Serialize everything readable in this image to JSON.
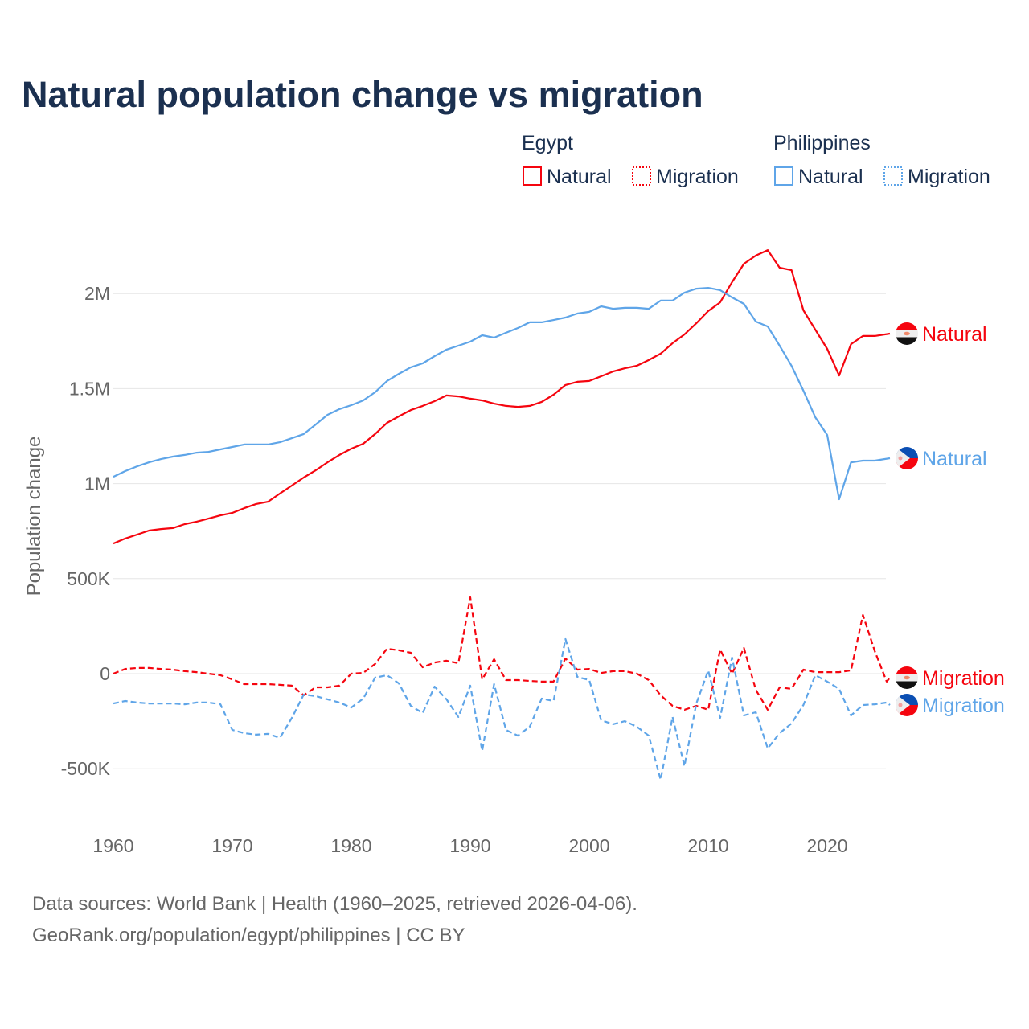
{
  "chart_data": {
    "type": "line",
    "title": "Natural population change vs migration",
    "ylabel": "Population change",
    "xlabel": "",
    "units": "thousands",
    "ylim": [
      -650000,
      2350000
    ],
    "xlim": [
      1960,
      2025
    ],
    "y_ticks": [
      {
        "value": -500000,
        "label": "-500K"
      },
      {
        "value": 0,
        "label": "0"
      },
      {
        "value": 500000,
        "label": "500K"
      },
      {
        "value": 1000000,
        "label": "1M"
      },
      {
        "value": 1500000,
        "label": "1.5M"
      },
      {
        "value": 2000000,
        "label": "2M"
      }
    ],
    "x_ticks": [
      {
        "value": 1960,
        "label": "1960"
      },
      {
        "value": 1970,
        "label": "1970"
      },
      {
        "value": 1980,
        "label": "1980"
      },
      {
        "value": 1990,
        "label": "1990"
      },
      {
        "value": 2000,
        "label": "2000"
      },
      {
        "value": 2010,
        "label": "2010"
      },
      {
        "value": 2020,
        "label": "2020"
      }
    ],
    "grid": true,
    "legend": {
      "placement": "top-right",
      "groups": [
        {
          "country": "Egypt",
          "items": [
            "Natural",
            "Migration"
          ]
        },
        {
          "country": "Philippines",
          "items": [
            "Natural",
            "Migration"
          ]
        }
      ]
    },
    "series": [
      {
        "name": "Egypt Natural",
        "country": "Egypt",
        "kind": "Natural",
        "label": "Natural",
        "color": "#f5050f",
        "dashed": false,
        "start_year": 1960,
        "values": [
          685,
          711,
          732,
          753,
          761,
          766,
          787,
          800,
          816,
          833,
          846,
          871,
          893,
          905,
          948,
          990,
          1032,
          1070,
          1112,
          1151,
          1184,
          1210,
          1261,
          1320,
          1354,
          1387,
          1409,
          1434,
          1464,
          1459,
          1447,
          1438,
          1421,
          1409,
          1404,
          1409,
          1430,
          1468,
          1519,
          1536,
          1540,
          1565,
          1590,
          1607,
          1620,
          1650,
          1684,
          1739,
          1785,
          1844,
          1908,
          1954,
          2060,
          2157,
          2200,
          2229,
          2136,
          2123,
          1912,
          1810,
          1709,
          1569,
          1734,
          1777,
          1777
        ]
      },
      {
        "name": "Philippines Natural",
        "country": "Philippines",
        "kind": "Natural",
        "label": "Natural",
        "color": "#5fa5e8",
        "dashed": false,
        "start_year": 1960,
        "values": [
          1036,
          1066,
          1091,
          1112,
          1129,
          1142,
          1151,
          1163,
          1167,
          1180,
          1193,
          1206,
          1206,
          1206,
          1218,
          1239,
          1261,
          1311,
          1362,
          1392,
          1413,
          1438,
          1481,
          1540,
          1578,
          1612,
          1633,
          1671,
          1705,
          1726,
          1747,
          1781,
          1768,
          1794,
          1819,
          1849,
          1849,
          1861,
          1874,
          1895,
          1904,
          1933,
          1920,
          1925,
          1925,
          1920,
          1963,
          1963,
          2005,
          2026,
          2030,
          2018,
          1980,
          1946,
          1853,
          1827,
          1726,
          1620,
          1489,
          1349,
          1256,
          918,
          1112,
          1121,
          1121
        ]
      },
      {
        "name": "Egypt Migration",
        "country": "Egypt",
        "kind": "Migration",
        "label": "Migration",
        "color": "#f5050f",
        "dashed": true,
        "start_year": 1960,
        "values": [
          0,
          25,
          30,
          30,
          25,
          21,
          13,
          8,
          0,
          -8,
          -30,
          -55,
          -55,
          -55,
          -59,
          -63,
          -114,
          -72,
          -72,
          -63,
          0,
          4,
          51,
          131,
          123,
          110,
          34,
          59,
          68,
          55,
          402,
          -30,
          76,
          -34,
          -34,
          -38,
          -42,
          -42,
          80,
          21,
          25,
          4,
          13,
          13,
          0,
          -34,
          -114,
          -169,
          -190,
          -169,
          -190,
          127,
          0,
          135,
          -85,
          -190,
          -72,
          -80,
          21,
          8,
          8,
          8,
          17,
          309,
          118,
          -42
        ]
      },
      {
        "name": "Philippines Migration",
        "country": "Philippines",
        "kind": "Migration",
        "label": "Migration",
        "color": "#5fa5e8",
        "dashed": true,
        "start_year": 1960,
        "values": [
          -157,
          -144,
          -152,
          -157,
          -157,
          -157,
          -161,
          -152,
          -152,
          -161,
          -296,
          -313,
          -321,
          -317,
          -338,
          -233,
          -110,
          -118,
          -135,
          -152,
          -178,
          -131,
          -21,
          -8,
          -51,
          -169,
          -207,
          -68,
          -135,
          -228,
          -63,
          -406,
          -55,
          -296,
          -326,
          -279,
          -131,
          -144,
          182,
          -17,
          -34,
          -245,
          -266,
          -250,
          -279,
          -326,
          -558,
          -228,
          -486,
          -157,
          17,
          -233,
          85,
          -220,
          -203,
          -393,
          -313,
          -262,
          -165,
          -8,
          -42,
          -80,
          -220,
          -165,
          -161,
          -152
        ]
      }
    ]
  },
  "footer": {
    "line1": "Data sources: World Bank | Health (1960–2025, retrieved 2026-04-06).",
    "line2": "GeoRank.org/population/egypt/philippines | CC BY"
  }
}
